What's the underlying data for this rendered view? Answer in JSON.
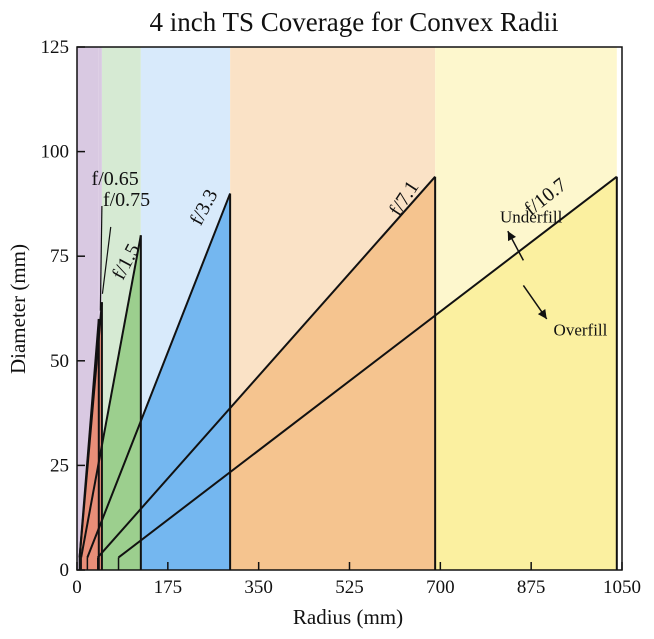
{
  "chart_data": {
    "type": "area",
    "title": "4 inch TS Coverage for Convex Radii",
    "xlabel": "Radius (mm)",
    "ylabel": "Diameter (mm)",
    "xlim": [
      0,
      1050
    ],
    "ylim": [
      0,
      125
    ],
    "xticks": [
      0,
      175,
      350,
      525,
      700,
      875,
      1050
    ],
    "yticks": [
      0,
      25,
      50,
      75,
      100,
      125
    ],
    "grid": false,
    "legend": "none",
    "regions": [
      {
        "name": "f/0.65",
        "boundary_top_x": 42,
        "range_x": [
          0,
          42
        ],
        "bg_color": "#d9c9e2",
        "fill_color": "#e88e78"
      },
      {
        "name": "f/0.75",
        "boundary_top_x": 48,
        "range_x": [
          42,
          48
        ],
        "bg_color": "#d9c9e2",
        "fill_color": "#e88e78"
      },
      {
        "name": "f/1.5",
        "boundary_top_x": 123,
        "range_x": [
          48,
          123
        ],
        "bg_color": "#d6ead3",
        "fill_color": "#9ccf8e"
      },
      {
        "name": "f/3.3",
        "boundary_top_x": 295,
        "range_x": [
          123,
          295
        ],
        "bg_color": "#d8eafb",
        "fill_color": "#74b7f0"
      },
      {
        "name": "f/7.1",
        "boundary_top_x": 690,
        "range_x": [
          295,
          690
        ],
        "bg_color": "#fae2c6",
        "fill_color": "#f5c48f"
      },
      {
        "name": "f/10.7",
        "boundary_top_x": 1040,
        "range_x": [
          690,
          1040
        ],
        "bg_color": "#fdf7cd",
        "fill_color": "#fbf0a0"
      }
    ],
    "series": [
      {
        "name": "f/0.65",
        "x": [
          5,
          42
        ],
        "y": [
          3,
          60
        ]
      },
      {
        "name": "f/0.75",
        "x": [
          5,
          48
        ],
        "y": [
          3,
          64
        ]
      },
      {
        "name": "f/1.5",
        "x": [
          8,
          123
        ],
        "y": [
          3,
          80
        ]
      },
      {
        "name": "f/3.3",
        "x": [
          20,
          295
        ],
        "y": [
          3,
          90
        ]
      },
      {
        "name": "f/7.1",
        "x": [
          40,
          690
        ],
        "y": [
          3,
          94
        ]
      },
      {
        "name": "f/10.7",
        "x": [
          80,
          1040
        ],
        "y": [
          3,
          94
        ]
      }
    ],
    "drop_lines_x": [
      48,
      123,
      295,
      690
    ],
    "annotations": [
      {
        "text": "Underfill"
      },
      {
        "text": "Overfill"
      }
    ]
  }
}
